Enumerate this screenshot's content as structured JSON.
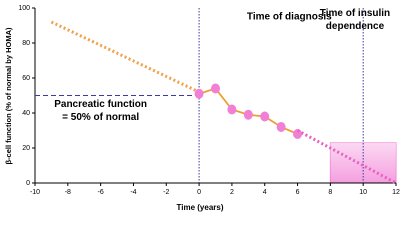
{
  "chart_data": {
    "type": "line",
    "xlabel": "Time (years)",
    "ylabel": "β-cell function (% of normal by HOMA)",
    "xlim": [
      -10,
      12
    ],
    "xticks": [
      -10,
      -8,
      -6,
      -4,
      -2,
      0,
      2,
      4,
      6,
      8,
      10,
      12
    ],
    "ylim": [
      0,
      100
    ],
    "yticks": [
      0,
      20,
      40,
      60,
      80,
      100
    ],
    "series": [
      {
        "x": [
          -9,
          0
        ],
        "values": [
          92,
          52
        ],
        "color": "#f2a04a",
        "dash": "dotted"
      },
      {
        "x": [
          0,
          1,
          2,
          3,
          4,
          5,
          6
        ],
        "values": [
          51,
          54,
          42,
          39,
          38,
          32,
          28
        ],
        "color": "#e8a030",
        "marker_color": "#f27fd6",
        "dash": "solid"
      },
      {
        "x": [
          6,
          12
        ],
        "values": [
          30,
          0
        ],
        "color": "#e860c0",
        "dash": "dotted"
      }
    ],
    "vlines": [
      0,
      10
    ],
    "hline": {
      "value": 50,
      "x": [
        -10,
        0
      ]
    },
    "shaded": {
      "x": [
        8,
        12
      ],
      "y": [
        0,
        23
      ],
      "color": "#f27fd6"
    },
    "annotations": [
      {
        "lines": [
          "Time of diagnosis"
        ],
        "x": 5.5,
        "y": 95
      },
      {
        "lines": [
          "Time of insulin",
          "dependence"
        ],
        "x": 9.5,
        "y": 97
      },
      {
        "lines": [
          "Pancreatic function",
          "= 50% of normal"
        ],
        "x": -6,
        "y": 45
      }
    ]
  }
}
